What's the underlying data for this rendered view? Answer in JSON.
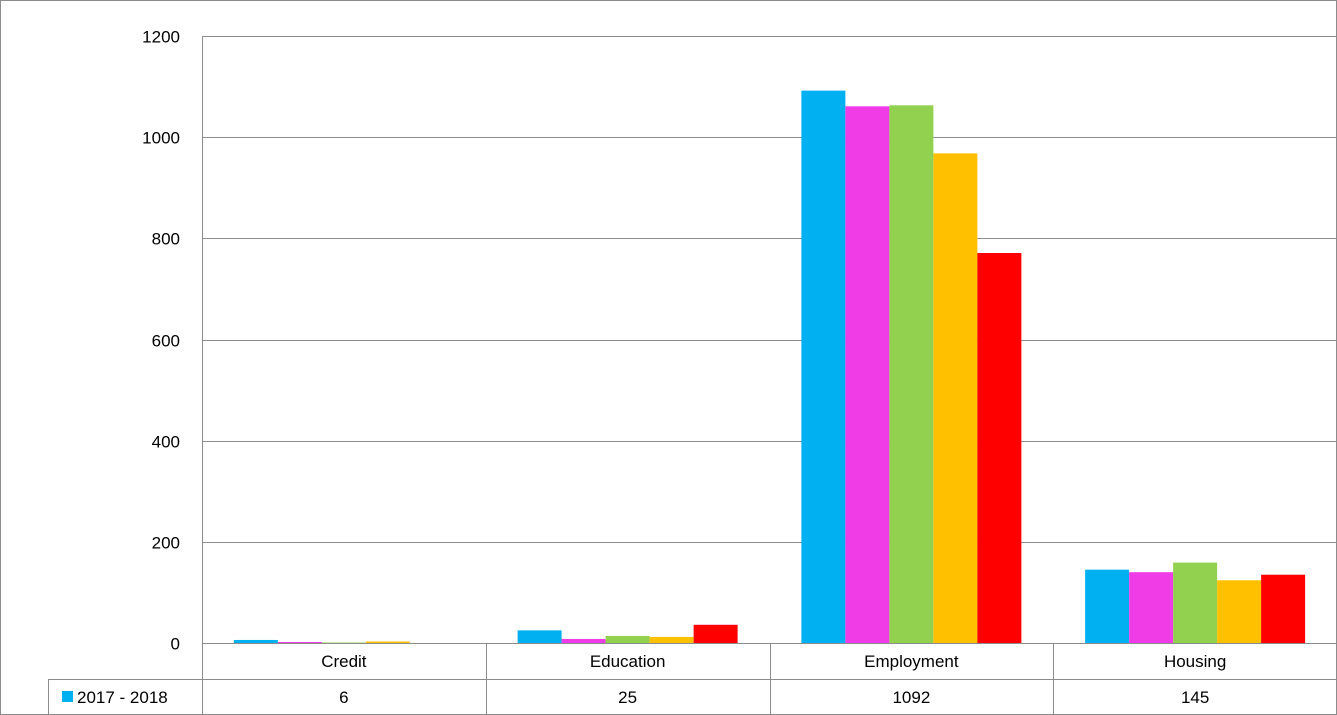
{
  "chart_data": {
    "type": "bar",
    "categories": [
      "Credit",
      "Education",
      "Employment",
      "Housing"
    ],
    "ylim": [
      0,
      1200
    ],
    "yticks": [
      0,
      200,
      400,
      600,
      800,
      1000,
      1200
    ],
    "grid": true,
    "legend": "data-table",
    "series": [
      {
        "name": "2017 - 2018",
        "color": "#00B0F0",
        "values": [
          6,
          25,
          1092,
          145
        ]
      },
      {
        "color": "#F03CE6",
        "values": [
          2,
          8,
          1061,
          140
        ]
      },
      {
        "color": "#92D050",
        "values": [
          1,
          14,
          1063,
          159
        ]
      },
      {
        "color": "#FFC000",
        "values": [
          3,
          12,
          968,
          124
        ]
      },
      {
        "color": "#FF0000",
        "values": [
          0,
          36,
          771,
          135
        ]
      }
    ],
    "table": {
      "rows": [
        {
          "label": "2017 - 2018",
          "color": "#00B0F0",
          "values": [
            "6",
            "25",
            "1092",
            "145"
          ]
        }
      ]
    }
  }
}
